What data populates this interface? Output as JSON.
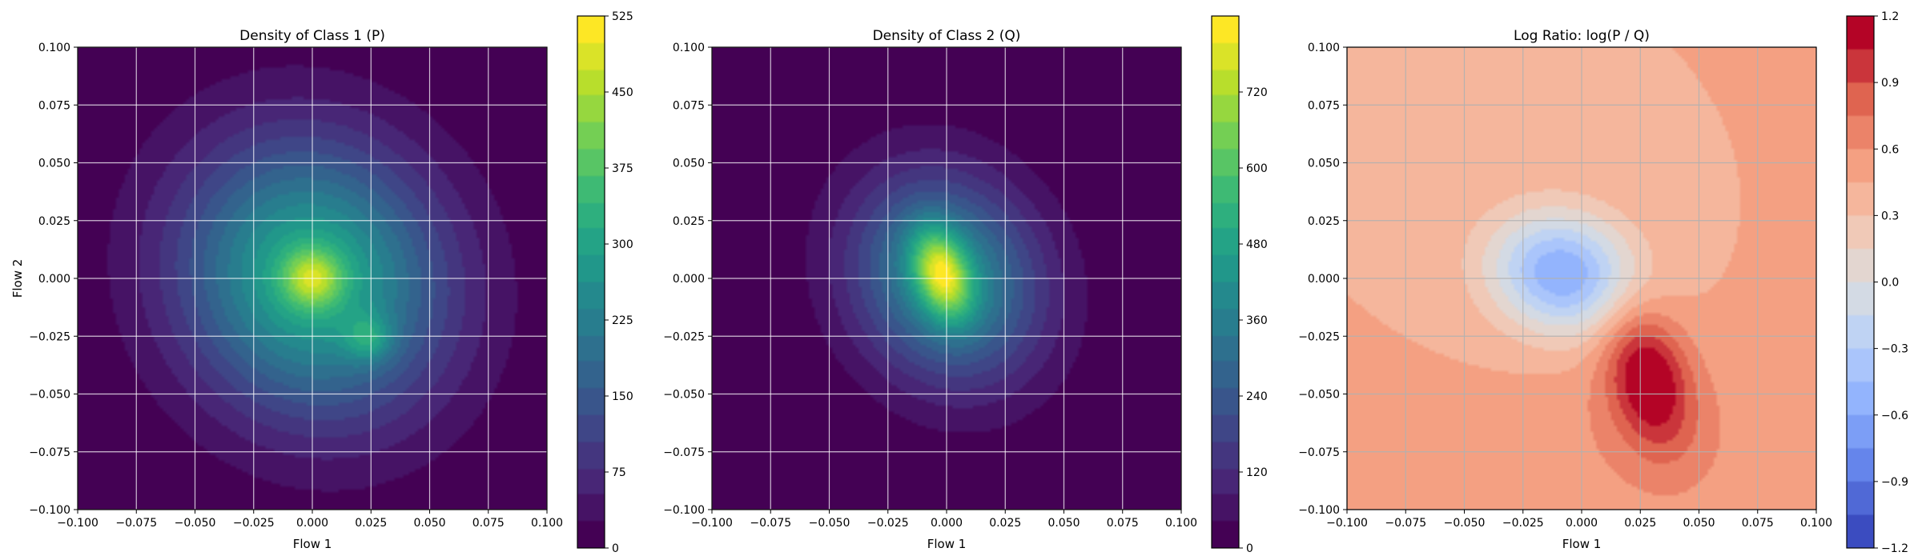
{
  "chart_data": [
    {
      "type": "heatmap",
      "title": "Density of Class 1 (P)",
      "xlabel": "Flow 1",
      "ylabel": "Flow 2",
      "xlim": [
        -0.1,
        0.1
      ],
      "ylim": [
        -0.1,
        0.1
      ],
      "x_ticks": [
        "−0.100",
        "−0.075",
        "−0.050",
        "−0.025",
        "0.000",
        "0.025",
        "0.050",
        "0.075",
        "0.100"
      ],
      "y_ticks": [
        "−0.100",
        "−0.075",
        "−0.050",
        "−0.025",
        "0.000",
        "0.025",
        "0.050",
        "0.075",
        "0.100"
      ],
      "grid": true,
      "colormap": "viridis",
      "colorbar": {
        "min": 0,
        "max": 525,
        "color_top_value": 525,
        "ticks": [
          "0",
          "75",
          "150",
          "225",
          "300",
          "375",
          "450",
          "525"
        ]
      },
      "blobs": [
        {
          "cx": 0.0,
          "cy": 0.0,
          "sx": 0.038,
          "sy": 0.042,
          "rot": 0.5,
          "peak": 320
        },
        {
          "cx": 0.0,
          "cy": 0.0,
          "sx": 0.009,
          "sy": 0.009,
          "rot": 0.0,
          "peak": 170
        },
        {
          "cx": 0.024,
          "cy": -0.026,
          "sx": 0.007,
          "sy": 0.007,
          "rot": 0.0,
          "peak": 110
        }
      ]
    },
    {
      "type": "heatmap",
      "title": "Density of Class 2 (Q)",
      "xlabel": "Flow 1",
      "ylabel": "",
      "xlim": [
        -0.1,
        0.1
      ],
      "ylim": [
        -0.1,
        0.1
      ],
      "x_ticks": [
        "−0.100",
        "−0.075",
        "−0.050",
        "−0.025",
        "0.000",
        "0.025",
        "0.050",
        "0.075",
        "0.100"
      ],
      "y_ticks": [
        "−0.100",
        "−0.075",
        "−0.050",
        "−0.025",
        "0.000",
        "0.025",
        "0.050",
        "0.075",
        "0.100"
      ],
      "grid": true,
      "colormap": "viridis",
      "colorbar": {
        "min": 0,
        "max": 840,
        "color_top_value": 840,
        "ticks": [
          "0",
          "120",
          "240",
          "360",
          "480",
          "600",
          "720"
        ]
      },
      "blobs": [
        {
          "cx": 0.0,
          "cy": 0.0,
          "sx": 0.027,
          "sy": 0.032,
          "rot": 0.45,
          "peak": 420
        },
        {
          "cx": -0.002,
          "cy": 0.002,
          "sx": 0.008,
          "sy": 0.014,
          "rot": 0.3,
          "peak": 420
        }
      ]
    },
    {
      "type": "heatmap",
      "title": "Log Ratio: log(P / Q)",
      "xlabel": "Flow 1",
      "ylabel": "",
      "xlim": [
        -0.1,
        0.1
      ],
      "ylim": [
        -0.1,
        0.1
      ],
      "x_ticks": [
        "−0.100",
        "−0.075",
        "−0.050",
        "−0.025",
        "0.000",
        "0.025",
        "0.050",
        "0.075",
        "0.100"
      ],
      "y_ticks": [
        "−0.100",
        "−0.075",
        "−0.050",
        "−0.025",
        "0.000",
        "0.025",
        "0.050",
        "0.075",
        "0.100"
      ],
      "grid": true,
      "colormap": "coolwarm",
      "colorbar": {
        "min": -1.2,
        "max": 1.2,
        "color_top_value": 1.2,
        "ticks": [
          "−1.2",
          "−0.9",
          "−0.6",
          "−0.3",
          "0.0",
          "0.3",
          "0.6",
          "0.9",
          "1.2"
        ]
      },
      "background_value": 0.45,
      "blobs": [
        {
          "cx": -0.008,
          "cy": 0.002,
          "sx": 0.022,
          "sy": 0.018,
          "rot": -0.3,
          "peak": -1.05
        },
        {
          "cx": 0.028,
          "cy": -0.042,
          "sx": 0.012,
          "sy": 0.022,
          "rot": 0.25,
          "peak": 0.75
        },
        {
          "cx": 0.03,
          "cy": -0.07,
          "sx": 0.04,
          "sy": 0.03,
          "rot": 0.0,
          "peak": 0.15
        }
      ]
    }
  ]
}
